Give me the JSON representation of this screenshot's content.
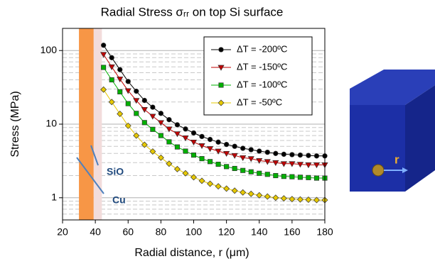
{
  "chart_data": {
    "type": "line",
    "title": "Radial Stress σᵣᵣ on top Si surface",
    "xlabel": "Radial distance, r (μm)",
    "ylabel": "Stress (MPa)",
    "xlim": [
      20,
      180
    ],
    "xticks": [
      20,
      40,
      60,
      80,
      100,
      120,
      140,
      160,
      180
    ],
    "ylim": [
      0.5,
      200
    ],
    "yticks": [
      1,
      10,
      100
    ],
    "y_minor_ticks": [
      0.6,
      0.7,
      0.8,
      0.9,
      2,
      3,
      4,
      5,
      6,
      7,
      8,
      9,
      20,
      30,
      40,
      50,
      60,
      70,
      80,
      90,
      200
    ],
    "log_y": true,
    "grid": true,
    "legend": "upper right",
    "regions": [
      {
        "label": "Cu",
        "x": [
          30,
          39
        ],
        "color": "#f79646"
      },
      {
        "label": "SiO",
        "x": [
          39,
          44
        ],
        "color": "#f2dcdb"
      }
    ],
    "x": [
      45,
      50,
      55,
      60,
      65,
      70,
      75,
      80,
      85,
      90,
      95,
      100,
      105,
      110,
      115,
      120,
      125,
      130,
      135,
      140,
      145,
      150,
      155,
      160,
      165,
      170,
      175,
      180
    ],
    "series": [
      {
        "name": "ΔT = -200ºC",
        "color": "#000000",
        "marker": "circle",
        "values": [
          118,
          80,
          55,
          38,
          28,
          21,
          17,
          14,
          11.5,
          9.8,
          8.6,
          7.6,
          6.8,
          6.2,
          5.7,
          5.3,
          5.0,
          4.7,
          4.5,
          4.3,
          4.15,
          4.0,
          3.9,
          3.85,
          3.8,
          3.75,
          3.7,
          3.7
        ]
      },
      {
        "name": "ΔT = -150ºC",
        "color": "#c00000",
        "marker": "triangle",
        "values": [
          88.5,
          60,
          41,
          28.5,
          21,
          15.8,
          12.8,
          10.5,
          8.6,
          7.4,
          6.5,
          5.7,
          5.1,
          4.65,
          4.3,
          4.0,
          3.75,
          3.5,
          3.4,
          3.2,
          3.1,
          3.0,
          2.9,
          2.9,
          2.85,
          2.8,
          2.8,
          2.8
        ]
      },
      {
        "name": "ΔT = -100ºC",
        "color": "#00b000",
        "marker": "square",
        "values": [
          59,
          40,
          27.5,
          19,
          14,
          10.5,
          8.5,
          7,
          5.75,
          4.9,
          4.3,
          3.8,
          3.4,
          3.1,
          2.85,
          2.65,
          2.5,
          2.35,
          2.25,
          2.15,
          2.08,
          2.0,
          1.95,
          1.93,
          1.9,
          1.88,
          1.85,
          1.85
        ]
      },
      {
        "name": "ΔT = -50ºC",
        "color": "#e6c800",
        "marker": "diamond",
        "values": [
          29.5,
          20,
          13.8,
          9.5,
          7,
          5.25,
          4.25,
          3.5,
          2.9,
          2.45,
          2.15,
          1.9,
          1.7,
          1.55,
          1.43,
          1.33,
          1.25,
          1.18,
          1.13,
          1.08,
          1.04,
          1.0,
          0.98,
          0.96,
          0.95,
          0.94,
          0.93,
          0.93
        ]
      }
    ]
  },
  "inset": {
    "label": "r"
  }
}
